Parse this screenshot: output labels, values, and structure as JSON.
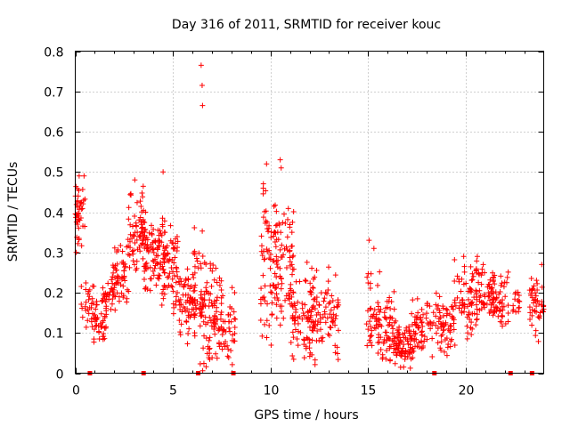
{
  "chart_data": {
    "type": "scatter",
    "title": "Day 316 of 2011, SRMTID for receiver kouc",
    "xlabel": "GPS time / hours",
    "ylabel": "SRMTID / TECUs",
    "xlim": [
      0,
      24
    ],
    "ylim": [
      0,
      0.8
    ],
    "xticks": [
      0,
      5,
      10,
      15,
      20
    ],
    "xtick_labels": [
      "0",
      "5",
      "10",
      "15",
      "20"
    ],
    "yticks": [
      0,
      0.1,
      0.2,
      0.3,
      0.4,
      0.5,
      0.6,
      0.7,
      0.8
    ],
    "ytick_labels": [
      "0",
      "0.1",
      "0.2",
      "0.3",
      "0.4",
      "0.5",
      "0.6",
      "0.7",
      "0.8"
    ],
    "grid": true,
    "colors": {
      "series": "#ff0000",
      "grid": "#a0a0a0",
      "axes": "#000000"
    },
    "series": [
      {
        "name": "SRMTID",
        "marker": "plus",
        "clusters": [
          {
            "x": [
              0.0,
              0.5
            ],
            "y": [
              0.3,
              0.5
            ],
            "n": 40
          },
          {
            "x": [
              0.3,
              1.0
            ],
            "y": [
              0.1,
              0.25
            ],
            "n": 30
          },
          {
            "x": [
              0.9,
              1.6
            ],
            "y": [
              0.06,
              0.21
            ],
            "n": 45
          },
          {
            "x": [
              1.4,
              2.0
            ],
            "y": [
              0.13,
              0.24
            ],
            "n": 25
          },
          {
            "x": [
              1.9,
              2.8
            ],
            "y": [
              0.15,
              0.33
            ],
            "n": 60
          },
          {
            "x": [
              2.7,
              3.6
            ],
            "y": [
              0.22,
              0.48
            ],
            "n": 70
          },
          {
            "x": [
              3.5,
              4.6
            ],
            "y": [
              0.18,
              0.4
            ],
            "n": 90
          },
          {
            "x": [
              4.4,
              5.4
            ],
            "y": [
              0.13,
              0.39
            ],
            "n": 70
          },
          {
            "x": [
              5.3,
              6.2
            ],
            "y": [
              0.06,
              0.28
            ],
            "n": 60
          },
          {
            "x": [
              6.0,
              6.6
            ],
            "y": [
              0.1,
              0.4
            ],
            "n": 30
          },
          {
            "x": [
              6.4,
              7.2
            ],
            "y": [
              0.0,
              0.3
            ],
            "n": 70
          },
          {
            "x": [
              7.1,
              8.2
            ],
            "y": [
              0.0,
              0.26
            ],
            "n": 70
          },
          {
            "x": [
              9.5,
              10.4
            ],
            "y": [
              0.02,
              0.52
            ],
            "n": 80
          },
          {
            "x": [
              10.3,
              11.2
            ],
            "y": [
              0.08,
              0.45
            ],
            "n": 60
          },
          {
            "x": [
              11.0,
              12.2
            ],
            "y": [
              0.0,
              0.29
            ],
            "n": 80
          },
          {
            "x": [
              12.0,
              13.5
            ],
            "y": [
              0.0,
              0.28
            ],
            "n": 90
          },
          {
            "x": [
              14.9,
              15.6
            ],
            "y": [
              0.05,
              0.3
            ],
            "n": 40
          },
          {
            "x": [
              15.5,
              16.4
            ],
            "y": [
              0.01,
              0.21
            ],
            "n": 60
          },
          {
            "x": [
              16.3,
              17.3
            ],
            "y": [
              0.01,
              0.14
            ],
            "n": 80
          },
          {
            "x": [
              17.2,
              18.2
            ],
            "y": [
              0.04,
              0.19
            ],
            "n": 60
          },
          {
            "x": [
              18.2,
              19.5
            ],
            "y": [
              0.02,
              0.22
            ],
            "n": 70
          },
          {
            "x": [
              19.4,
              20.6
            ],
            "y": [
              0.06,
              0.3
            ],
            "n": 70
          },
          {
            "x": [
              20.5,
              21.5
            ],
            "y": [
              0.12,
              0.27
            ],
            "n": 60
          },
          {
            "x": [
              21.4,
              22.2
            ],
            "y": [
              0.1,
              0.26
            ],
            "n": 50
          },
          {
            "x": [
              22.4,
              22.8
            ],
            "y": [
              0.13,
              0.22
            ],
            "n": 15
          },
          {
            "x": [
              23.2,
              24.0
            ],
            "y": [
              0.06,
              0.27
            ],
            "n": 45
          }
        ],
        "points": [
          [
            0.05,
            0.3
          ],
          [
            0.15,
            0.44
          ],
          [
            0.2,
            0.49
          ],
          [
            0.45,
            0.49
          ],
          [
            3.05,
            0.48
          ],
          [
            3.6,
            0.4
          ],
          [
            4.5,
            0.5
          ],
          [
            6.45,
            0.765
          ],
          [
            6.5,
            0.715
          ],
          [
            6.52,
            0.665
          ],
          [
            9.8,
            0.52
          ],
          [
            10.5,
            0.53
          ],
          [
            10.55,
            0.51
          ],
          [
            11.1,
            0.35
          ],
          [
            15.05,
            0.33
          ],
          [
            15.3,
            0.31
          ],
          [
            19.9,
            0.29
          ],
          [
            20.9,
            0.27
          ],
          [
            23.9,
            0.27
          ]
        ],
        "zero_markers_x": [
          0.75,
          3.5,
          6.3,
          8.1,
          18.4,
          22.3,
          23.4
        ]
      }
    ]
  }
}
